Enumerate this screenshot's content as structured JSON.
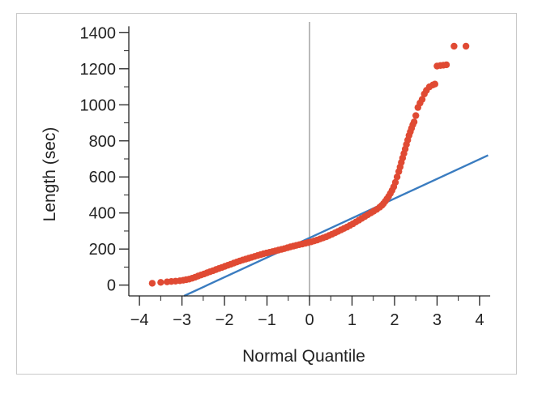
{
  "chart_data": {
    "type": "scatter",
    "title": "",
    "xlabel": "Normal Quantile",
    "ylabel": "Length (sec)",
    "xlim": [
      -4.25,
      4.25
    ],
    "ylim": [
      -60,
      1460
    ],
    "xticks": [
      -4,
      -3,
      -2,
      -1,
      0,
      1,
      2,
      3,
      4
    ],
    "xtick_labels": [
      "−4",
      "−3",
      "−2",
      "−1",
      "0",
      "1",
      "2",
      "3",
      "4"
    ],
    "yticks": [
      0,
      200,
      400,
      600,
      800,
      1000,
      1200,
      1400
    ],
    "ytick_labels": [
      "0",
      "200",
      "400",
      "600",
      "800",
      "1000",
      "1200",
      "1400"
    ],
    "grid": false,
    "colors": {
      "points": "#e04a33",
      "line": "#3a7cc0",
      "axis": "#222222",
      "zero_line": "#8c8c8c"
    },
    "reference_line": {
      "x": [
        -2.95,
        4.2
      ],
      "y": [
        -60,
        720
      ]
    },
    "zero_line_x": 0,
    "series": [
      {
        "x": [
          -3.7,
          -3.5,
          -3.35,
          -3.25,
          -3.15,
          -3.05,
          -2.97,
          -2.9,
          -2.83,
          -2.76,
          -2.69,
          -2.62,
          -2.55,
          -2.48,
          -2.41,
          -2.34,
          -2.27,
          -2.2,
          -2.13,
          -2.06,
          -1.99,
          -1.92,
          -1.85,
          -1.78,
          -1.71,
          -1.64,
          -1.57,
          -1.5,
          -1.43,
          -1.36,
          -1.29,
          -1.22,
          -1.15,
          -1.08,
          -1.01,
          -0.94,
          -0.87,
          -0.8,
          -0.73,
          -0.66,
          -0.59,
          -0.52,
          -0.45,
          -0.38,
          -0.31,
          -0.24,
          -0.17,
          -0.1,
          -0.03,
          0.04,
          0.11,
          0.18,
          0.25,
          0.32,
          0.39,
          0.46,
          0.53,
          0.6,
          0.67,
          0.74,
          0.81,
          0.88,
          0.95,
          1.02,
          1.09,
          1.16,
          1.23,
          1.3,
          1.37,
          1.44,
          1.51,
          1.58,
          1.65,
          1.7,
          1.74,
          1.78,
          1.82,
          1.86,
          1.9,
          1.94,
          1.98,
          2.02,
          2.06,
          2.1,
          2.13,
          2.16,
          2.19,
          2.22,
          2.25,
          2.28,
          2.31,
          2.34,
          2.37,
          2.4,
          2.43,
          2.46,
          2.5,
          2.55,
          2.6,
          2.65,
          2.7,
          2.75,
          2.82,
          2.9,
          2.95,
          3.0,
          3.08,
          3.15,
          3.22,
          3.4,
          3.68
        ],
        "y": [
          10,
          15,
          18,
          20,
          22,
          24,
          27,
          30,
          33,
          38,
          44,
          50,
          56,
          62,
          68,
          74,
          80,
          86,
          92,
          98,
          104,
          110,
          116,
          122,
          128,
          134,
          139,
          144,
          149,
          154,
          159,
          164,
          169,
          174,
          178,
          182,
          186,
          190,
          194,
          198,
          202,
          207,
          212,
          216,
          220,
          224,
          228,
          232,
          236,
          240,
          245,
          250,
          256,
          262,
          268,
          275,
          282,
          290,
          298,
          306,
          314,
          322,
          331,
          340,
          350,
          360,
          370,
          380,
          390,
          400,
          410,
          420,
          432,
          442,
          452,
          465,
          478,
          492,
          508,
          525,
          545,
          570,
          600,
          630,
          655,
          680,
          705,
          730,
          755,
          780,
          805,
          830,
          850,
          870,
          890,
          905,
          940,
          985,
          1010,
          1030,
          1060,
          1080,
          1100,
          1110,
          1115,
          1215,
          1218,
          1220,
          1222,
          1325,
          1325
        ]
      }
    ]
  }
}
